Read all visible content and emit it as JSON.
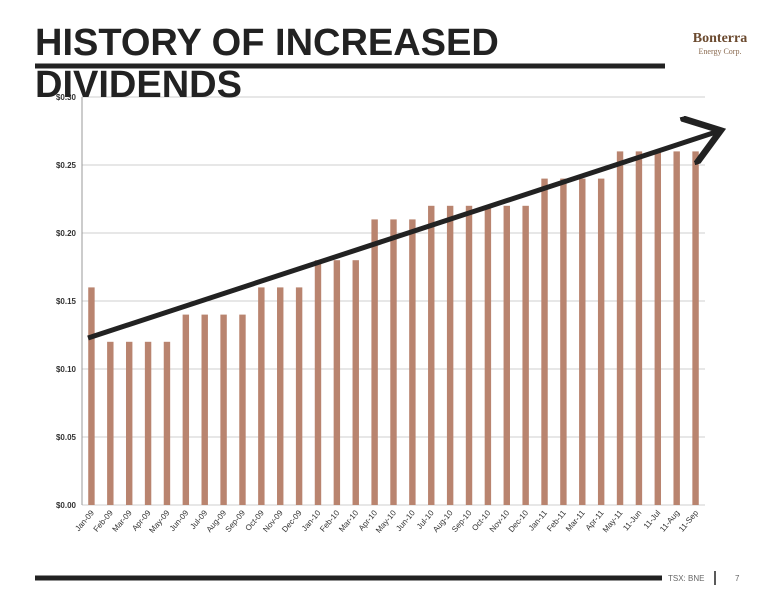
{
  "title": "HISTORY OF INCREASED DIVIDENDS",
  "logo": {
    "name": "Bonterra",
    "subtitle": "Energy Corp."
  },
  "footer": {
    "ticker": "TSX: BNE",
    "page": "7"
  },
  "chart_data": {
    "type": "bar",
    "categories": [
      "Jan-09",
      "Feb-09",
      "Mar-09",
      "Apr-09",
      "May-09",
      "Jun-09",
      "Jul-09",
      "Aug-09",
      "Sep-09",
      "Oct-09",
      "Nov-09",
      "Dec-09",
      "Jan-10",
      "Feb-10",
      "Mar-10",
      "Apr-10",
      "May-10",
      "Jun-10",
      "Jul-10",
      "Aug-10",
      "Sep-10",
      "Oct-10",
      "Nov-10",
      "Dec-10",
      "Jan-11",
      "Feb-11",
      "Mar-11",
      "Apr-11",
      "May-11",
      "11-Jun",
      "11-Jul",
      "11-Aug",
      "11-Sep"
    ],
    "values": [
      0.16,
      0.12,
      0.12,
      0.12,
      0.12,
      0.14,
      0.14,
      0.14,
      0.14,
      0.16,
      0.16,
      0.16,
      0.18,
      0.18,
      0.18,
      0.21,
      0.21,
      0.21,
      0.22,
      0.22,
      0.22,
      0.22,
      0.22,
      0.22,
      0.24,
      0.24,
      0.24,
      0.24,
      0.26,
      0.26,
      0.26,
      0.26,
      0.26
    ],
    "color": "#b9846f",
    "ylim": [
      0,
      0.3
    ],
    "yticks": [
      {
        "value": 0,
        "label": "$0.00"
      },
      {
        "value": 0.05,
        "label": "$0.05"
      },
      {
        "value": 0.1,
        "label": "$0.10"
      },
      {
        "value": 0.15,
        "label": "$0.15"
      },
      {
        "value": 0.2,
        "label": "$0.20"
      },
      {
        "value": 0.25,
        "label": "$0.25"
      },
      {
        "value": 0.3,
        "label": "$0.30"
      }
    ],
    "grid": true
  }
}
